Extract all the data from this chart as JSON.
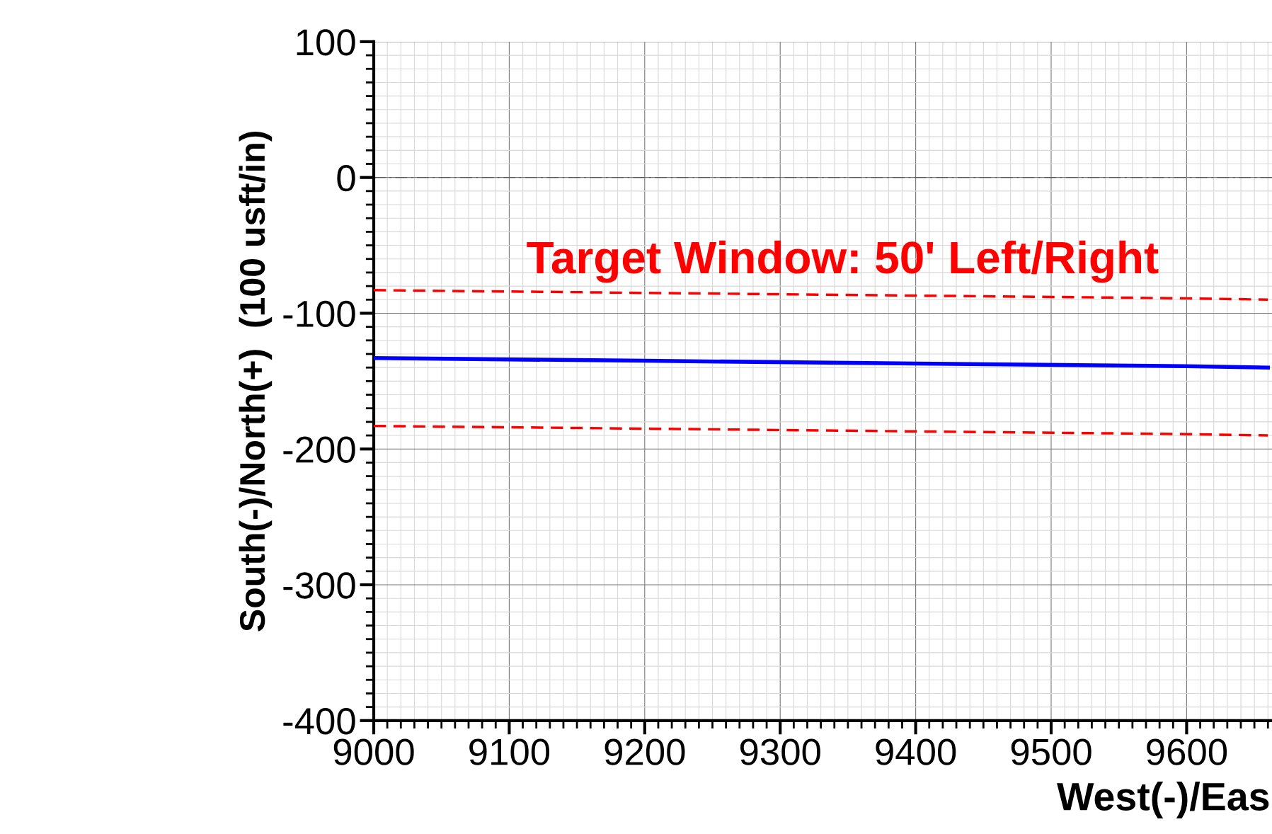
{
  "chart_data": {
    "type": "line",
    "xlabel": "West(-)/Eas",
    "ylabel": "South(-)/North(+)  (100 usft/in)",
    "xlim": [
      9000,
      9663
    ],
    "ylim": [
      -400,
      100
    ],
    "xticks": [
      9000,
      9100,
      9200,
      9300,
      9400,
      9500,
      9600
    ],
    "yticks": [
      -400,
      -300,
      -200,
      -100,
      0,
      100
    ],
    "grid": true,
    "marker": "none",
    "x": [
      9000,
      9200,
      9400,
      9600,
      9660
    ],
    "series": [
      {
        "values": [
          -83,
          -85,
          -87,
          -89,
          -90
        ],
        "color": "#ff0000",
        "line_style": "dashed"
      },
      {
        "values": [
          -183,
          -185,
          -187,
          -189,
          -190
        ],
        "color": "#ff0000",
        "line_style": "dashed"
      },
      {
        "values": [
          -133,
          -135,
          -137,
          -139,
          -140
        ],
        "color": "#0000ff",
        "line_style": "solid"
      }
    ],
    "ref_lines": [
      {
        "axis": "y",
        "value": 0,
        "label": null,
        "color": "#555555",
        "line_style": "dashdot"
      }
    ],
    "annotations": [
      "Target Window: 50' Left/Right"
    ]
  }
}
